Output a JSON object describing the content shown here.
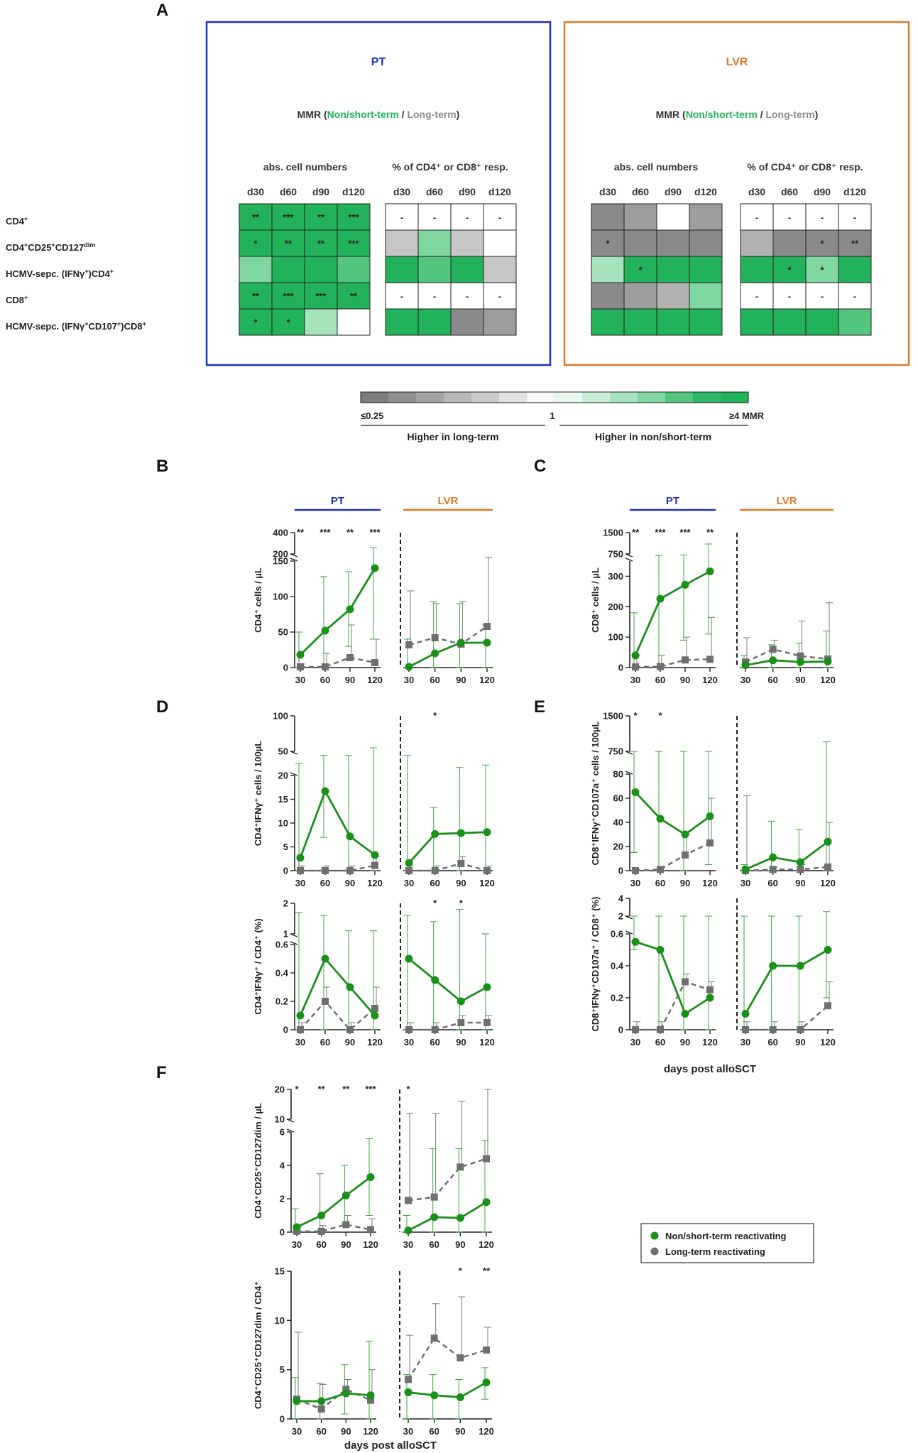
{
  "colors": {
    "green": "#1a8f1a",
    "grey": "#6f6f6f",
    "pt_blue": "#1f2fbf",
    "lvr_orange": "#e0782a",
    "mmr_green": "#1fb35a",
    "mmr_grey": "#8c8c8c"
  },
  "panel_labels": [
    "A",
    "B",
    "C",
    "D",
    "E",
    "F"
  ],
  "heatmap": {
    "groups": [
      {
        "title": "PT",
        "mmr_prefix": "MMR (",
        "mmr_green": "Non/short-term",
        "mmr_sep": " / ",
        "mmr_grey": "Long-term",
        "mmr_suffix": ")"
      },
      {
        "title": "LVR",
        "mmr_prefix": "MMR (",
        "mmr_green": "Non/short-term",
        "mmr_sep": " / ",
        "mmr_grey": "Long-term",
        "mmr_suffix": ")"
      }
    ],
    "subtitles": [
      "abs. cell numbers",
      "% of CD4⁺ or CD8⁺ resp."
    ],
    "columns": [
      "d30",
      "d60",
      "d90",
      "d120"
    ],
    "rows": [
      {
        "pre": "CD4",
        "sup": "+"
      },
      {
        "pre": "CD4",
        "sup": "+",
        "mid": "CD25",
        "sup2": "+",
        "mid2": "CD127",
        "sup3": "dim"
      },
      {
        "pre": "HCMV-sepc. (IFNγ",
        "sup": "+",
        "mid": ")CD4",
        "sup2": "+"
      },
      {
        "pre": "CD8",
        "sup": "+"
      },
      {
        "pre": "HCMV-sepc. (IFNγ",
        "sup": "+",
        "mid": "CD107",
        "sup2": "+",
        "mid2": ")CD8",
        "sup3": "+"
      }
    ],
    "grids": [
      {
        "group": "PT",
        "table": "abs",
        "cells": [
          [
            8,
            8,
            8,
            8
          ],
          [
            8,
            8,
            8,
            8
          ],
          [
            6,
            8,
            8,
            7
          ],
          [
            8,
            8,
            8,
            8
          ],
          [
            8,
            8,
            5,
            4
          ]
        ],
        "marks": [
          [
            "**",
            "***",
            "**",
            "***"
          ],
          [
            "*",
            "**",
            "**",
            "***"
          ],
          [
            "",
            "",
            "",
            ""
          ],
          [
            "**",
            "***",
            "***",
            "**"
          ],
          [
            "*",
            "*",
            "",
            ""
          ]
        ]
      },
      {
        "group": "PT",
        "table": "pct",
        "cells": [
          [
            4,
            4,
            4,
            4
          ],
          [
            3,
            6,
            3,
            4
          ],
          [
            8,
            7,
            8,
            3
          ],
          [
            4,
            4,
            4,
            4
          ],
          [
            8,
            8,
            0,
            1
          ]
        ],
        "marks": [
          [
            "-",
            "-",
            "-",
            "-"
          ],
          [
            "",
            "",
            "",
            ""
          ],
          [
            "",
            "",
            "",
            ""
          ],
          [
            "-",
            "-",
            "-",
            "-"
          ],
          [
            "",
            "",
            "",
            ""
          ]
        ]
      },
      {
        "group": "LVR",
        "table": "abs",
        "cells": [
          [
            0,
            1,
            4,
            1
          ],
          [
            0,
            0,
            0,
            0
          ],
          [
            5,
            8,
            8,
            8
          ],
          [
            0,
            1,
            2,
            6
          ],
          [
            8,
            8,
            8,
            8
          ]
        ],
        "marks": [
          [
            "",
            "",
            "",
            ""
          ],
          [
            "*",
            "",
            "",
            ""
          ],
          [
            "",
            "*",
            "",
            ""
          ],
          [
            "",
            "",
            "",
            ""
          ],
          [
            "",
            "",
            "",
            ""
          ]
        ]
      },
      {
        "group": "LVR",
        "table": "pct",
        "cells": [
          [
            4,
            4,
            4,
            4
          ],
          [
            2,
            0,
            0,
            0
          ],
          [
            8,
            8,
            6,
            8
          ],
          [
            4,
            4,
            4,
            4
          ],
          [
            8,
            8,
            8,
            7
          ]
        ],
        "marks": [
          [
            "-",
            "-",
            "-",
            "-"
          ],
          [
            "",
            "",
            "*",
            "**"
          ],
          [
            "",
            "*",
            "*",
            ""
          ],
          [
            "-",
            "-",
            "-",
            "-"
          ],
          [
            "",
            "",
            "",
            ""
          ]
        ]
      }
    ],
    "scale_colors": [
      "#8a8a8a",
      "#9d9d9d",
      "#b1b1b1",
      "#c6c6c6",
      "#dadada",
      "#f2f2f2",
      "#e8f8ee",
      "#c9eed6",
      "#a7e3bd",
      "#7fd6a0",
      "#52c57f",
      "#22b35a"
    ],
    "scale_left": "≤0.25",
    "scale_mid": "1",
    "scale_right": "≥4 MMR",
    "scale_caption_left": "Higher in long-term",
    "scale_caption_right": "Higher in non/short-term"
  },
  "legend": {
    "green": "Non/short-term reactivating",
    "grey": "Long-term reactivating"
  },
  "x_axis_title": "days post alloSCT",
  "chart_data": [
    {
      "id": "B",
      "type": "line",
      "title": "CD4⁺ cells / µL",
      "x": [
        30,
        60,
        90,
        120
      ],
      "break_at": 150,
      "ylim_low": [
        0,
        150
      ],
      "ylim_high": [
        200,
        400
      ],
      "yticks_low": [
        0,
        50,
        100,
        150
      ],
      "yticks_high": [
        200,
        400
      ],
      "ylabel": "CD4⁺ cells / µL",
      "groups": [
        "PT",
        "LVR"
      ],
      "PT": {
        "green": [
          18,
          52,
          82,
          140
        ],
        "grey": [
          1,
          1,
          14,
          7
        ],
        "green_hi": [
          50,
          128,
          135,
          260
        ],
        "green_lo": [
          0,
          0,
          30,
          40
        ],
        "grey_hi": [
          5,
          20,
          60,
          40
        ],
        "sig": [
          "**",
          "***",
          "**",
          "***"
        ]
      },
      "LVR": {
        "green": [
          1,
          20,
          35,
          35
        ],
        "grey": [
          32,
          42,
          33,
          58
        ],
        "green_hi": [
          40,
          93,
          90,
          60
        ],
        "green_lo": [
          0,
          0,
          0,
          0
        ],
        "grey_hi": [
          108,
          90,
          93,
          176
        ],
        "sig": [
          "",
          "",
          "",
          ""
        ]
      }
    },
    {
      "id": "C",
      "type": "line",
      "title": "CD8⁺ cells / µL",
      "x": [
        30,
        60,
        90,
        120
      ],
      "break_at": 350,
      "ylim_low": [
        0,
        350
      ],
      "ylim_high": [
        750,
        1500
      ],
      "yticks_low": [
        0,
        100,
        200,
        300
      ],
      "yticks_high": [
        750,
        1500
      ],
      "ylabel": "CD8⁺ cells / µL",
      "groups": [
        "PT",
        "LVR"
      ],
      "PT": {
        "green": [
          40,
          226,
          272,
          316
        ],
        "grey": [
          2,
          3,
          25,
          27
        ],
        "green_hi": [
          180,
          660,
          690,
          1100
        ],
        "green_lo": [
          0,
          0,
          90,
          110
        ],
        "grey_hi": [
          40,
          40,
          100,
          165
        ],
        "sig": [
          "**",
          "***",
          "***",
          "**"
        ]
      },
      "LVR": {
        "green": [
          8,
          24,
          18,
          20
        ],
        "grey": [
          18,
          60,
          38,
          28
        ],
        "green_hi": [
          40,
          75,
          80,
          120
        ],
        "green_lo": [
          0,
          0,
          0,
          0
        ],
        "grey_hi": [
          98,
          90,
          153,
          213
        ],
        "sig": [
          "",
          "",
          "",
          ""
        ]
      }
    },
    {
      "id": "D1",
      "type": "line",
      "title": "CD4⁺IFNγ⁺ cells / 100µL",
      "x": [
        30,
        60,
        90,
        120
      ],
      "break_at": 20,
      "ylim_low": [
        0,
        20
      ],
      "ylim_high": [
        50,
        100
      ],
      "yticks_low": [
        0,
        5,
        10,
        15,
        20
      ],
      "yticks_high": [
        50,
        100
      ],
      "ylabel": "CD4⁺IFNγ⁺ cells / 100µL",
      "groups": [
        "PT",
        "LVR"
      ],
      "PT": {
        "green": [
          2.7,
          16.7,
          7.2,
          3.3
        ],
        "grey": [
          0,
          0,
          0,
          1.1
        ],
        "green_hi": [
          35,
          45,
          45,
          55
        ],
        "green_lo": [
          0,
          7,
          0,
          0
        ],
        "grey_hi": [
          1,
          1,
          1,
          3
        ],
        "sig": [
          "",
          "",
          "",
          ""
        ]
      },
      "LVR": {
        "green": [
          1.6,
          7.7,
          7.9,
          8.1
        ],
        "grey": [
          0,
          0,
          1.5,
          0
        ],
        "green_hi": [
          45,
          13.3,
          30,
          33
        ],
        "green_lo": [
          0,
          0,
          0,
          0
        ],
        "grey_hi": [
          1,
          1,
          3,
          1
        ],
        "sig": [
          "",
          "*",
          "",
          ""
        ]
      }
    },
    {
      "id": "D2",
      "type": "line",
      "title": "CD4⁺IFNγ⁺ / CD4⁺ (%)",
      "x": [
        30,
        60,
        90,
        120
      ],
      "break_at": 0.6,
      "ylim_low": [
        0,
        0.6
      ],
      "ylim_high": [
        1,
        2
      ],
      "yticks_low": [
        0,
        0.2,
        0.4,
        0.6
      ],
      "yticks_high": [
        1,
        2
      ],
      "ylabel": "CD4⁺IFNγ⁺ / CD4⁺ (%)",
      "groups": [
        "PT",
        "LVR"
      ],
      "PT": {
        "green": [
          0.1,
          0.5,
          0.3,
          0.1
        ],
        "grey": [
          0,
          0.2,
          0,
          0.15
        ],
        "green_hi": [
          1.7,
          1.6,
          1.1,
          1.1
        ],
        "green_lo": [
          0,
          0,
          0,
          0
        ],
        "grey_hi": [
          0.05,
          0.3,
          0.05,
          0.3
        ],
        "sig": [
          "",
          "",
          "",
          ""
        ]
      },
      "LVR": {
        "green": [
          0.5,
          0.35,
          0.2,
          0.3
        ],
        "grey": [
          0,
          0,
          0.05,
          0.05
        ],
        "green_hi": [
          1.6,
          1.4,
          1.8,
          1.0
        ],
        "green_lo": [
          0,
          0,
          0,
          0
        ],
        "grey_hi": [
          0.05,
          0.05,
          0.1,
          0.1
        ],
        "sig": [
          "",
          "*",
          "*",
          ""
        ]
      }
    },
    {
      "id": "E1",
      "type": "line",
      "title": "CD8⁺IFNγ⁺CD107a⁺ cells / 100µL",
      "x": [
        30,
        60,
        90,
        120
      ],
      "break_at": 80,
      "ylim_low": [
        0,
        80
      ],
      "ylim_high": [
        750,
        1500
      ],
      "yticks_low": [
        0,
        20,
        40,
        60,
        80
      ],
      "yticks_high": [
        750,
        1500
      ],
      "ylabel": "CD8⁺IFNγ⁺CD107a⁺ cells / 100µL",
      "groups": [
        "PT",
        "LVR"
      ],
      "PT": {
        "green": [
          65,
          43,
          30,
          45
        ],
        "grey": [
          0,
          1,
          13,
          23
        ],
        "green_hi": [
          750,
          750,
          750,
          750
        ],
        "green_lo": [
          15,
          0,
          0,
          5
        ],
        "grey_hi": [
          1,
          3,
          30,
          60
        ],
        "sig": [
          "*",
          "*",
          "",
          ""
        ]
      },
      "LVR": {
        "green": [
          1,
          11,
          7,
          24
        ],
        "grey": [
          0,
          1,
          1,
          3
        ],
        "green_hi": [
          5,
          41,
          34,
          950
        ],
        "green_lo": [
          0,
          0,
          0,
          0
        ],
        "grey_hi": [
          62,
          3,
          5,
          40
        ],
        "sig": [
          "",
          "",
          "",
          ""
        ]
      }
    },
    {
      "id": "E2",
      "type": "line",
      "title": "CD8⁺IFNγ⁺CD107a⁺ / CD8⁺ (%)",
      "x": [
        30,
        60,
        90,
        120
      ],
      "break_at": 0.6,
      "ylim_low": [
        0,
        0.6
      ],
      "ylim_high": [
        2,
        4
      ],
      "yticks_low": [
        0,
        0.2,
        0.4,
        0.6
      ],
      "yticks_high": [
        2,
        4
      ],
      "ylabel": "CD8⁺IFNγ⁺CD107a⁺ / CD8⁺ (%)",
      "groups": [
        "PT",
        "LVR"
      ],
      "PT": {
        "green": [
          0.55,
          0.5,
          0.1,
          0.2
        ],
        "grey": [
          0,
          0,
          0.3,
          0.25
        ],
        "green_hi": [
          2,
          2,
          2,
          2
        ],
        "green_lo": [
          0.5,
          0,
          0,
          0
        ],
        "grey_hi": [
          0.05,
          0.05,
          0.35,
          0.3
        ],
        "sig": [
          "",
          "",
          "",
          ""
        ]
      },
      "LVR": {
        "green": [
          0.1,
          0.4,
          0.4,
          0.5
        ],
        "grey": [
          0,
          0,
          0,
          0.15
        ],
        "green_hi": [
          2,
          2,
          2,
          2.5
        ],
        "green_lo": [
          0,
          0,
          0,
          0.2
        ],
        "grey_hi": [
          0.05,
          0.05,
          0.05,
          0.3
        ],
        "sig": [
          "",
          "",
          "",
          ""
        ]
      }
    },
    {
      "id": "F1",
      "type": "line",
      "title": "CD4⁺CD25⁺CD127dim / µL",
      "x": [
        30,
        60,
        90,
        120
      ],
      "break_at": 6,
      "ylim_low": [
        0,
        6
      ],
      "ylim_high": [
        10,
        20
      ],
      "yticks_low": [
        0,
        2,
        4,
        6
      ],
      "yticks_high": [
        10,
        20
      ],
      "ylabel": "CD4⁺CD25⁺CD127dim / µL",
      "groups": [
        "PT",
        "LVR"
      ],
      "PT": {
        "green": [
          0.3,
          1.0,
          2.2,
          3.3
        ],
        "grey": [
          0.05,
          0.05,
          0.45,
          0.15
        ],
        "green_hi": [
          1.4,
          3.5,
          4.0,
          5.6
        ],
        "green_lo": [
          0,
          0,
          0.5,
          1.0
        ],
        "grey_hi": [
          0.3,
          0.4,
          1.0,
          0.8
        ],
        "sig": [
          "*",
          "**",
          "**",
          "***"
        ]
      },
      "LVR": {
        "green": [
          0.1,
          0.9,
          0.85,
          1.8
        ],
        "grey": [
          1.9,
          2.1,
          3.9,
          4.4
        ],
        "green_hi": [
          1,
          5,
          5,
          5.5
        ],
        "green_lo": [
          0,
          0,
          0,
          0
        ],
        "grey_hi": [
          12,
          12,
          16,
          20
        ],
        "sig": [
          "*",
          "",
          "",
          ""
        ]
      }
    },
    {
      "id": "F2",
      "type": "line",
      "title": "CD4⁺CD25⁺CD127dim / CD4⁺",
      "x": [
        30,
        60,
        90,
        120
      ],
      "break_at": 15,
      "ylim_low": [
        0,
        15
      ],
      "ylim_high": null,
      "yticks_low": [
        0,
        5,
        10,
        15
      ],
      "yticks_high": [],
      "ylabel": "CD4⁺CD25⁺CD127dim / CD4⁺",
      "groups": [
        "PT",
        "LVR"
      ],
      "PT": {
        "green": [
          1.8,
          1.8,
          2.6,
          2.4
        ],
        "grey": [
          2.0,
          1.0,
          3.0,
          1.9
        ],
        "green_hi": [
          4.2,
          3.6,
          5.5,
          7.9
        ],
        "green_lo": [
          0,
          0,
          0.5,
          0
        ],
        "grey_hi": [
          8.8,
          3.5,
          4.0,
          5.0
        ],
        "sig": [
          "",
          "",
          "",
          ""
        ]
      },
      "LVR": {
        "green": [
          2.7,
          2.4,
          2.2,
          3.7
        ],
        "grey": [
          4.0,
          8.2,
          6.2,
          7.0
        ],
        "green_hi": [
          4.5,
          4.5,
          4.0,
          5.2
        ],
        "green_lo": [
          0,
          0,
          0,
          2.0
        ],
        "grey_hi": [
          8.5,
          11.7,
          12.4,
          9.3
        ],
        "sig": [
          "",
          "",
          "*",
          "**"
        ]
      }
    }
  ]
}
